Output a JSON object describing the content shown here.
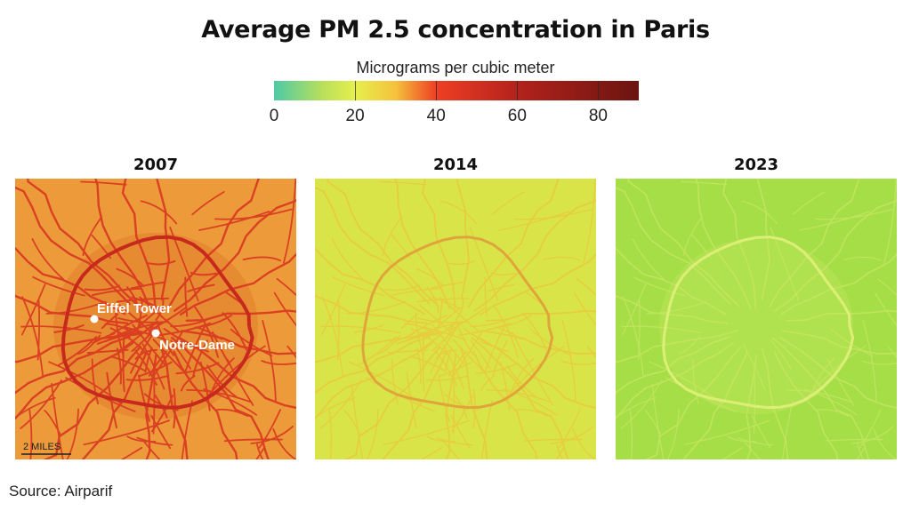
{
  "title": "Average PM 2.5 concentration in Paris",
  "unit": "Micrograms per cubic meter",
  "color_scale": {
    "ticks": [
      "0",
      "20",
      "40",
      "60",
      "80"
    ],
    "tick_values": [
      0,
      20,
      40,
      60,
      80
    ],
    "max": 90,
    "stops": [
      {
        "value": 0,
        "color": "#4ec9a6"
      },
      {
        "value": 12,
        "color": "#b8e05a"
      },
      {
        "value": 20,
        "color": "#e6ef4e"
      },
      {
        "value": 30,
        "color": "#f5c23c"
      },
      {
        "value": 40,
        "color": "#ef3f24"
      },
      {
        "value": 60,
        "color": "#b3221c"
      },
      {
        "value": 90,
        "color": "#6b1410"
      }
    ]
  },
  "maps": [
    {
      "year": "2007",
      "background": "#ec9a3a",
      "road_color": "#d8321f",
      "ring_color": "#c72a1c"
    },
    {
      "year": "2014",
      "background": "#d8e448",
      "road_color": "#ecc63a",
      "ring_color": "#e0a53a"
    },
    {
      "year": "2023",
      "background": "#a6de48",
      "road_color": "#cbe766",
      "ring_color": "#dbee76"
    }
  ],
  "labels": {
    "eiffel_tower": "Eiffel Tower",
    "notre_dame": "Notre-Dame"
  },
  "scale_label": "2 MILES",
  "source": "Source: Airparif"
}
